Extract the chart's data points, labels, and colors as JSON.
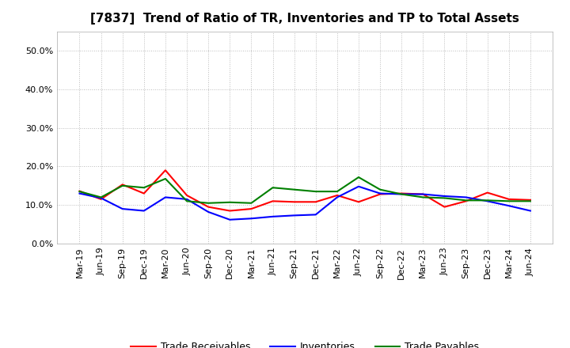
{
  "title": "[7837]  Trend of Ratio of TR, Inventories and TP to Total Assets",
  "ylim": [
    0.0,
    0.55
  ],
  "yticks": [
    0.0,
    0.1,
    0.2,
    0.3,
    0.4,
    0.5
  ],
  "background_color": "#ffffff",
  "plot_bg_color": "#ffffff",
  "grid_color": "#bbbbbb",
  "labels": [
    "Mar-19",
    "Jun-19",
    "Sep-19",
    "Dec-19",
    "Mar-20",
    "Jun-20",
    "Sep-20",
    "Dec-20",
    "Mar-21",
    "Jun-21",
    "Sep-21",
    "Dec-21",
    "Mar-22",
    "Jun-22",
    "Sep-22",
    "Dec-22",
    "Mar-23",
    "Jun-23",
    "Sep-23",
    "Dec-23",
    "Mar-24",
    "Jun-24"
  ],
  "trade_receivables": [
    0.136,
    0.115,
    0.153,
    0.13,
    0.19,
    0.125,
    0.095,
    0.085,
    0.09,
    0.11,
    0.108,
    0.108,
    0.125,
    0.108,
    0.128,
    0.13,
    0.128,
    0.095,
    0.11,
    0.132,
    0.115,
    0.113
  ],
  "inventories": [
    0.13,
    0.118,
    0.09,
    0.085,
    0.12,
    0.115,
    0.082,
    0.062,
    0.065,
    0.07,
    0.073,
    0.075,
    0.12,
    0.148,
    0.13,
    0.128,
    0.128,
    0.123,
    0.12,
    0.11,
    0.098,
    0.085
  ],
  "trade_payables": [
    0.135,
    0.12,
    0.15,
    0.145,
    0.168,
    0.11,
    0.105,
    0.107,
    0.105,
    0.145,
    0.14,
    0.135,
    0.135,
    0.172,
    0.14,
    0.128,
    0.12,
    0.118,
    0.112,
    0.112,
    0.11,
    0.11
  ],
  "tr_color": "#ff0000",
  "inv_color": "#0000ff",
  "tp_color": "#008000",
  "line_width": 1.5,
  "legend_labels": [
    "Trade Receivables",
    "Inventories",
    "Trade Payables"
  ],
  "title_fontsize": 11,
  "tick_fontsize": 8,
  "legend_fontsize": 9
}
